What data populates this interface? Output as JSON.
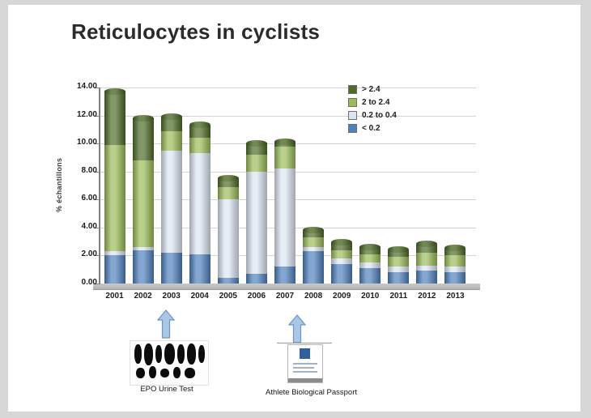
{
  "page": {
    "title": "Reticulocytes in cyclists"
  },
  "chart_data": {
    "type": "bar",
    "stacked": true,
    "title": "Reticulocytes in cyclists",
    "xlabel": "",
    "ylabel": "% échantillons",
    "ylim": [
      0,
      14
    ],
    "ytick_step": 2,
    "grid": true,
    "legend_position": "top-right",
    "categories": [
      "2001",
      "2002",
      "2003",
      "2004",
      "2005",
      "2006",
      "2007",
      "2008",
      "2009",
      "2010",
      "2011",
      "2012",
      "2013"
    ],
    "series": [
      {
        "name": "< 0.2",
        "color": "#4f81bd",
        "values": [
          2.0,
          2.4,
          2.2,
          2.1,
          0.4,
          0.7,
          1.2,
          2.3,
          1.4,
          1.1,
          0.8,
          0.9,
          0.8
        ]
      },
      {
        "name": "0.2 to 0.4",
        "color": "#dbe5f1",
        "values": [
          0.3,
          0.2,
          7.3,
          7.2,
          5.6,
          7.3,
          7.0,
          0.3,
          0.4,
          0.4,
          0.4,
          0.4,
          0.4
        ]
      },
      {
        "name": "2 to 2.4",
        "color": "#9bbb59",
        "values": [
          7.6,
          6.2,
          1.4,
          1.1,
          0.9,
          1.2,
          1.6,
          0.7,
          0.6,
          0.6,
          0.7,
          0.9,
          0.8
        ]
      },
      {
        "name": "> 2.4",
        "color": "#4e6b28",
        "values": [
          3.8,
          3.0,
          1.0,
          0.9,
          0.6,
          0.8,
          0.3,
          0.5,
          0.5,
          0.5,
          0.5,
          0.6,
          0.5
        ]
      }
    ],
    "totals": [
      13.7,
      11.8,
      11.9,
      11.3,
      7.5,
      10.0,
      10.1,
      3.8,
      2.9,
      2.6,
      2.4,
      2.8,
      2.5
    ]
  },
  "annotations": {
    "epo": {
      "label": "EPO Urine Test"
    },
    "abp": {
      "label": "Athlete Biological Passport"
    }
  },
  "colors": {
    "arrow_fill": "#aac7e4",
    "arrow_stroke": "#6d94c4",
    "axis": "#7f7f7f",
    "gridline": "#d4d4d4"
  }
}
